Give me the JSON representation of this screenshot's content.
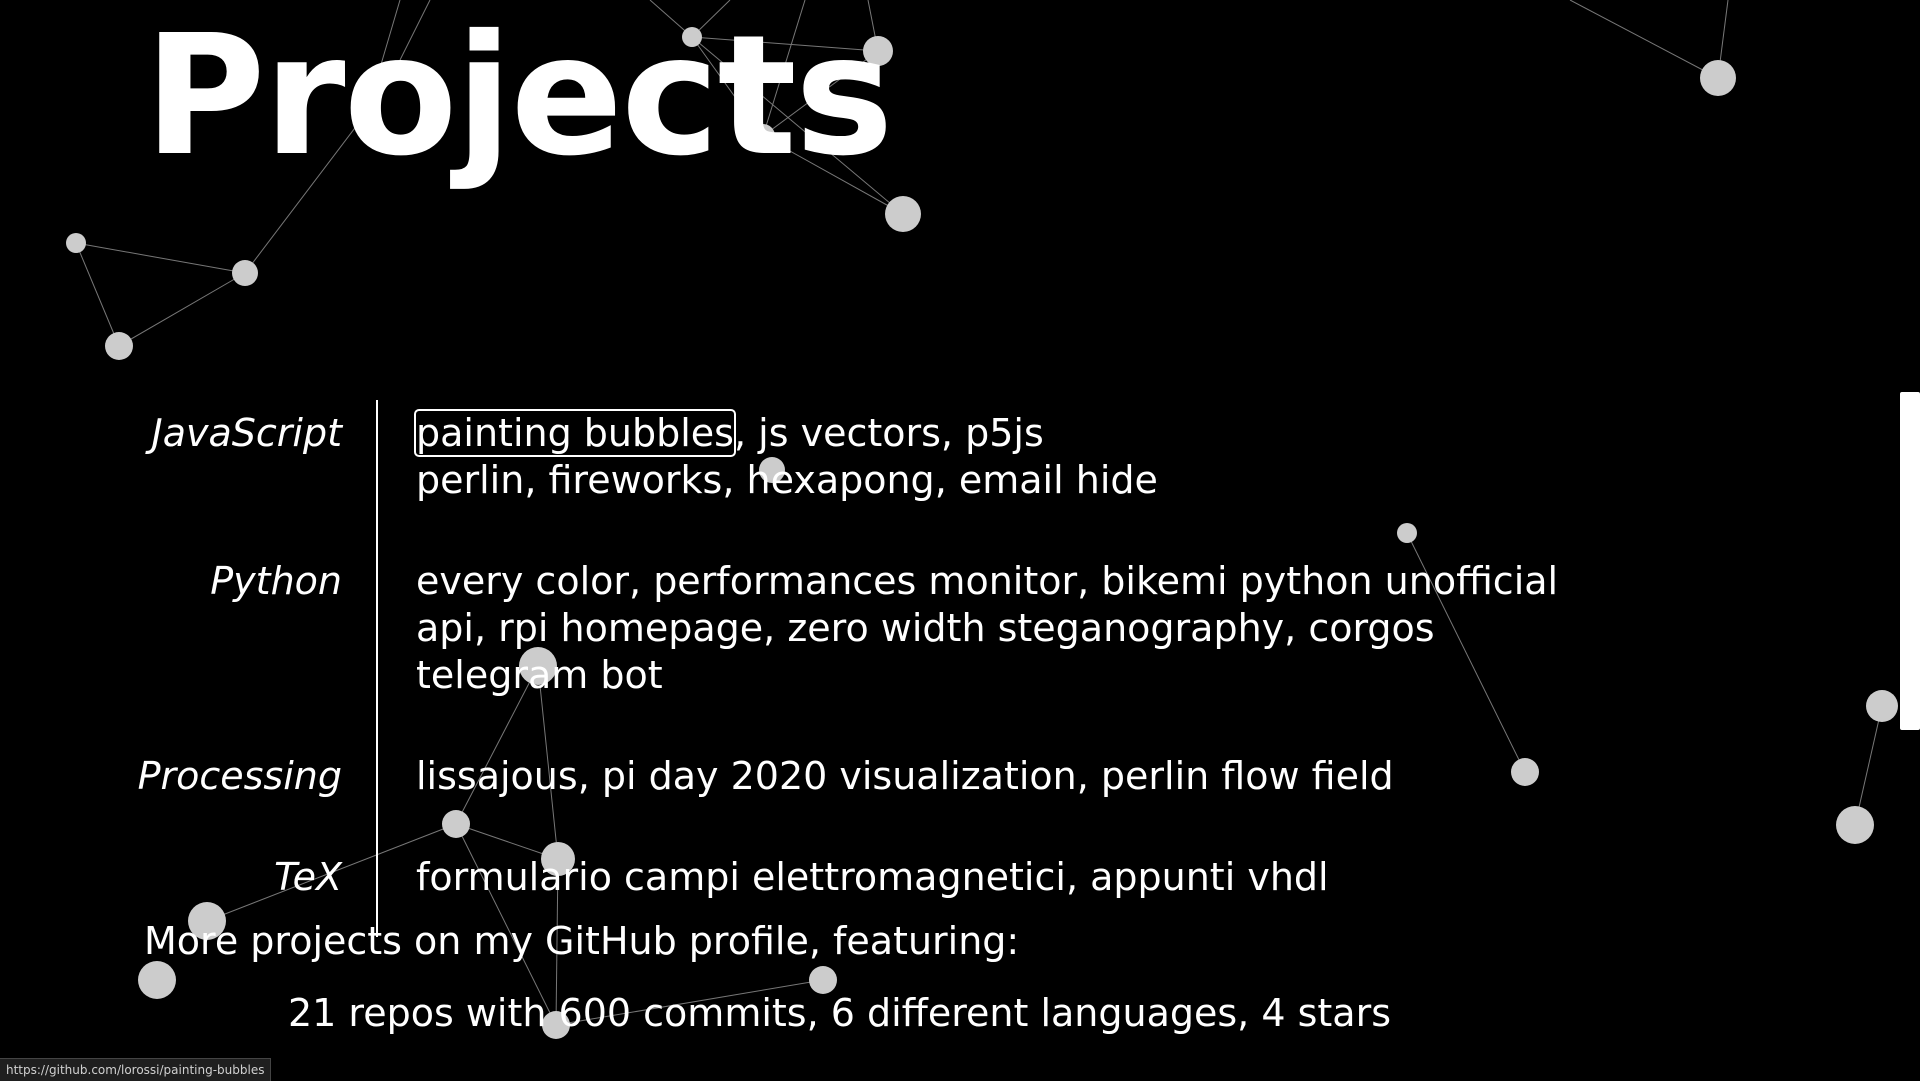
{
  "title": "Projects",
  "sections": [
    {
      "language": "JavaScript",
      "projects": [
        "painting bubbles",
        "js vectors",
        "p5js perlin",
        "fireworks",
        "hexapong",
        "email hide"
      ]
    },
    {
      "language": "Python",
      "projects": [
        "every color",
        "performances monitor",
        "bikemi python unofficial api",
        "rpi homepage",
        "zero width steganography",
        "corgos telegram bot"
      ]
    },
    {
      "language": "Processing",
      "projects": [
        "lissajous",
        "pi day 2020 visualization",
        "perlin flow field"
      ]
    },
    {
      "language": "TeX",
      "projects": [
        "formulario campi elettromagnetici",
        "appunti vhdl"
      ]
    }
  ],
  "separator": ", ",
  "more": {
    "prefix": "More projects on my ",
    "link": "GitHub profile",
    "suffix": ", featuring:"
  },
  "stats": "21 repos with 600 commits, 6 different languages, 4 stars",
  "status_url": "https://github.com/lorossi/painting-bubbles",
  "colors": {
    "background": "#000000",
    "text": "#ffffff",
    "node": "#cccccc",
    "edge": "#777777"
  }
}
